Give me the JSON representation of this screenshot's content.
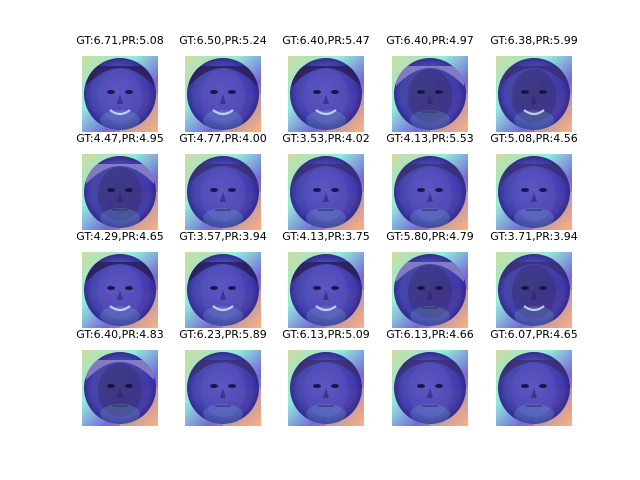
{
  "figure": {
    "grid": {
      "rows": 4,
      "cols": 5
    },
    "cells": [
      {
        "title": "GT:6.71,PR:5.08",
        "face": "female-smiling"
      },
      {
        "title": "GT:6.50,PR:5.24",
        "face": "female-smiling"
      },
      {
        "title": "GT:6.40,PR:5.47",
        "face": "female-smiling"
      },
      {
        "title": "GT:6.40,PR:4.97",
        "face": "male-older"
      },
      {
        "title": "GT:6.38,PR:5.99",
        "face": "male-smiling"
      },
      {
        "title": "GT:4.47,PR:4.95",
        "face": "male-older"
      },
      {
        "title": "GT:4.77,PR:4.00",
        "face": "male-young"
      },
      {
        "title": "GT:3.53,PR:4.02",
        "face": "male-neutral"
      },
      {
        "title": "GT:4.13,PR:5.53",
        "face": "male-young"
      },
      {
        "title": "GT:5.08,PR:4.56",
        "face": "male-neutral"
      },
      {
        "title": "GT:4.29,PR:4.65",
        "face": "female-smiling"
      },
      {
        "title": "GT:3.57,PR:3.94",
        "face": "female-smiling"
      },
      {
        "title": "GT:4.13,PR:3.75",
        "face": "female-smiling"
      },
      {
        "title": "GT:5.80,PR:4.79",
        "face": "male-older"
      },
      {
        "title": "GT:3.71,PR:3.94",
        "face": "male-smiling"
      },
      {
        "title": "GT:6.40,PR:4.83",
        "face": "male-older"
      },
      {
        "title": "GT:6.23,PR:5.89",
        "face": "male-young"
      },
      {
        "title": "GT:6.13,PR:5.09",
        "face": "male-neutral"
      },
      {
        "title": "GT:6.13,PR:4.66",
        "face": "male-young"
      },
      {
        "title": "GT:6.07,PR:4.65",
        "face": "male-neutral"
      }
    ]
  },
  "colors": {
    "background": "#ffffff",
    "heatmap_cool": "#5b4fd0",
    "heatmap_warm": "#f7d26a",
    "heatmap_hot": "#ff8f7a",
    "heatmap_mid": "#7fe8d8",
    "title_text": "#000000"
  }
}
